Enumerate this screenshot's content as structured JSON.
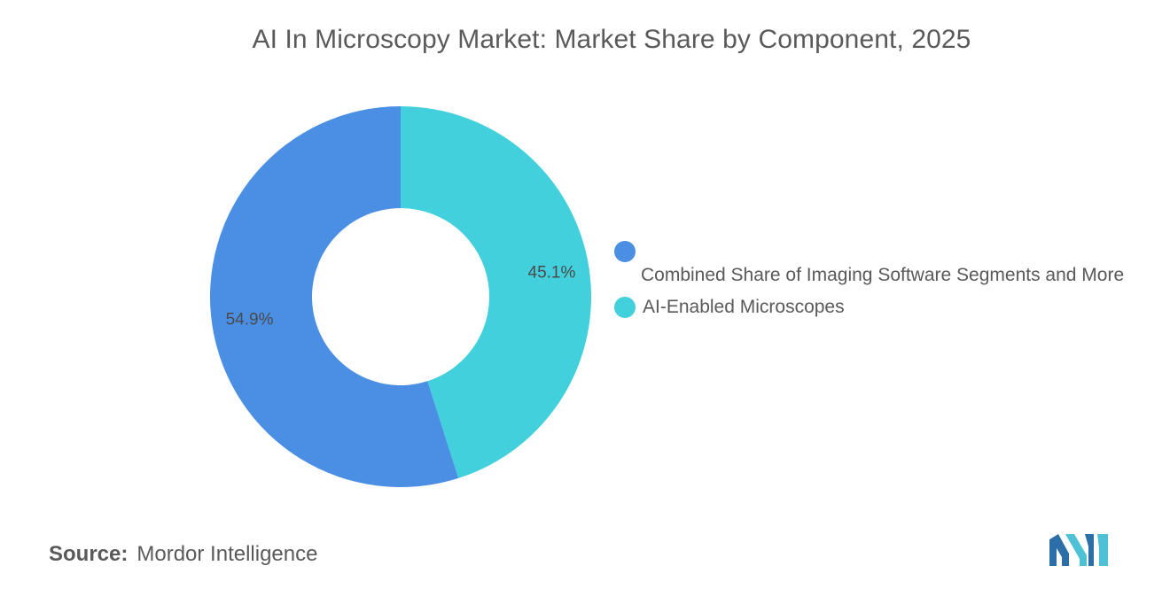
{
  "title": "AI In Microscopy Market: Market Share by Component, 2025",
  "chart_data": {
    "type": "pie",
    "donut": true,
    "title": "AI In Microscopy Market: Market Share by Component, 2025",
    "slices": [
      {
        "name": "AI-Enabled Microscopes",
        "value": 45.1,
        "label": "45.1%",
        "color": "#42d0dc"
      },
      {
        "name": "Combined Share of Imaging Software Segments and More",
        "value": 54.9,
        "label": "54.9%",
        "color": "#4a8fe4"
      }
    ],
    "legend_position": "right"
  },
  "legend": {
    "items": [
      {
        "label": "Combined Share of Imaging Software Segments and More",
        "color": "#4a8fe4"
      },
      {
        "label": "AI-Enabled Microscopes",
        "color": "#42d0dc"
      }
    ]
  },
  "source": {
    "key": "Source:",
    "value": "Mordor Intelligence"
  },
  "logo": {
    "icon": "mordor-intelligence-logo",
    "color_dark": "#2c6fa8",
    "color_light": "#4fc1d6"
  }
}
